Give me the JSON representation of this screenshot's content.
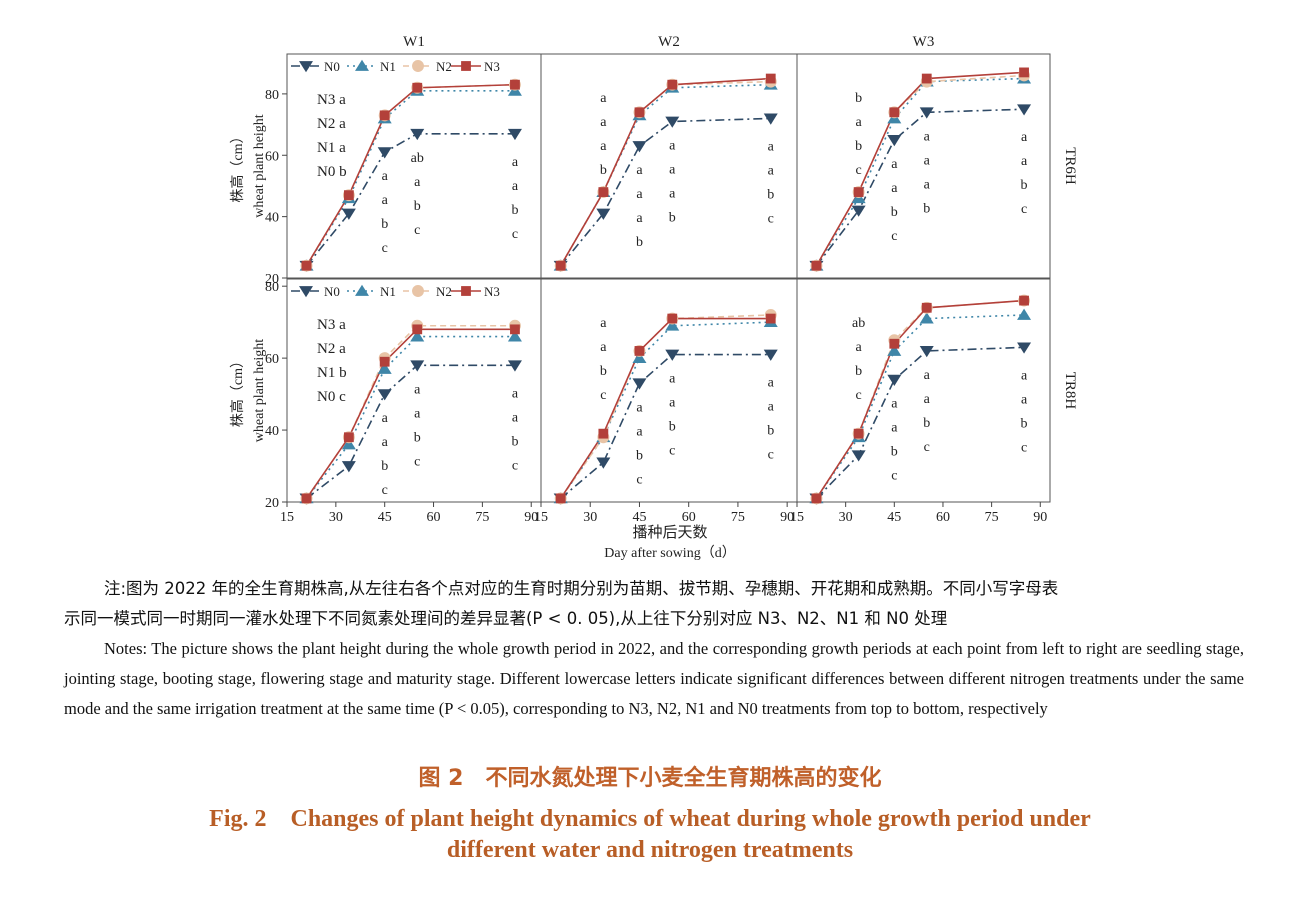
{
  "chart_data": {
    "type": "line",
    "panel_titles": {
      "columns": [
        "W1",
        "W2",
        "W3"
      ],
      "rows": [
        "TR6H",
        "TR8H"
      ]
    },
    "ylabel_cn": "株高（cm）",
    "ylabel_en": "wheat plant height",
    "xlabel_cn": "播种后天数",
    "xlabel_en": "Day after sowing（d）",
    "x_ticks": [
      15,
      30,
      45,
      60,
      75,
      90
    ],
    "xlim": [
      15,
      93
    ],
    "rows": [
      {
        "ylim": [
          20,
          93
        ],
        "y_ticks": [
          20,
          40,
          60,
          80
        ]
      },
      {
        "ylim": [
          20,
          82
        ],
        "y_ticks": [
          20,
          40,
          60,
          80
        ]
      }
    ],
    "legend": [
      "N0",
      "N1",
      "N2",
      "N3"
    ],
    "series_colors": {
      "N0": "#2f4a66",
      "N1": "#3f86a8",
      "N2": "#e8c4a6",
      "N3": "#b3403a"
    },
    "x": [
      21,
      34,
      45,
      55,
      85
    ],
    "panels": [
      {
        "row": 0,
        "col": 0,
        "values": {
          "N0": [
            24,
            41,
            61,
            67,
            67
          ],
          "N1": [
            24,
            46,
            72,
            81,
            81
          ],
          "N2": [
            24,
            47,
            73,
            82,
            83
          ],
          "N3": [
            24,
            47,
            73,
            82,
            83
          ]
        },
        "letter_labels": [
          "N3 a",
          "N2 a",
          "N1 a",
          "N0 b"
        ],
        "letters": [
          {
            "x": 45,
            "lines": [
              "a",
              "a",
              "b",
              "c"
            ]
          },
          {
            "x": 55,
            "lines": [
              "ab",
              "a",
              "b",
              "c"
            ]
          },
          {
            "x": 85,
            "lines": [
              "a",
              "a",
              "b",
              "c"
            ]
          }
        ]
      },
      {
        "row": 0,
        "col": 1,
        "values": {
          "N0": [
            24,
            41,
            63,
            71,
            72
          ],
          "N1": [
            24,
            48,
            73,
            82,
            83
          ],
          "N2": [
            24,
            48,
            74,
            83,
            84
          ],
          "N3": [
            24,
            48,
            74,
            83,
            85
          ]
        },
        "letters": [
          {
            "x": 34,
            "lines": [
              "a",
              "a",
              "a",
              "b"
            ]
          },
          {
            "x": 45,
            "lines": [
              "a",
              "a",
              "a",
              "b"
            ]
          },
          {
            "x": 55,
            "lines": [
              "a",
              "a",
              "a",
              "b"
            ]
          },
          {
            "x": 85,
            "lines": [
              "a",
              "a",
              "b",
              "c"
            ]
          }
        ]
      },
      {
        "row": 0,
        "col": 2,
        "values": {
          "N0": [
            24,
            42,
            65,
            74,
            75
          ],
          "N1": [
            24,
            46,
            72,
            84,
            85
          ],
          "N2": [
            24,
            48,
            74,
            84,
            86
          ],
          "N3": [
            24,
            48,
            74,
            85,
            87
          ]
        },
        "letters": [
          {
            "x": 34,
            "lines": [
              "b",
              "a",
              "b",
              "c"
            ]
          },
          {
            "x": 45,
            "lines": [
              "a",
              "a",
              "b",
              "c"
            ]
          },
          {
            "x": 55,
            "lines": [
              "a",
              "a",
              "a",
              "b"
            ]
          },
          {
            "x": 85,
            "lines": [
              "a",
              "a",
              "b",
              "c"
            ]
          }
        ]
      },
      {
        "row": 1,
        "col": 0,
        "values": {
          "N0": [
            21,
            30,
            50,
            58,
            58
          ],
          "N1": [
            21,
            36,
            57,
            66,
            66
          ],
          "N2": [
            21,
            38,
            60,
            69,
            69
          ],
          "N3": [
            21,
            38,
            59,
            68,
            68
          ]
        },
        "letter_labels": [
          "N3 a",
          "N2 a",
          "N1 b",
          "N0 c"
        ],
        "letters": [
          {
            "x": 45,
            "lines": [
              "a",
              "a",
              "b",
              "c"
            ]
          },
          {
            "x": 55,
            "lines": [
              "a",
              "a",
              "b",
              "c"
            ]
          },
          {
            "x": 85,
            "lines": [
              "a",
              "a",
              "b",
              "c"
            ]
          }
        ]
      },
      {
        "row": 1,
        "col": 1,
        "values": {
          "N0": [
            21,
            31,
            53,
            61,
            61
          ],
          "N1": [
            21,
            38,
            60,
            69,
            70
          ],
          "N2": [
            21,
            38,
            62,
            71,
            72
          ],
          "N3": [
            21,
            39,
            62,
            71,
            71
          ]
        },
        "letters": [
          {
            "x": 34,
            "lines": [
              "a",
              "a",
              "b",
              "c"
            ]
          },
          {
            "x": 45,
            "lines": [
              "a",
              "a",
              "b",
              "c"
            ]
          },
          {
            "x": 55,
            "lines": [
              "a",
              "a",
              "b",
              "c"
            ]
          },
          {
            "x": 85,
            "lines": [
              "a",
              "a",
              "b",
              "c"
            ]
          }
        ]
      },
      {
        "row": 1,
        "col": 2,
        "values": {
          "N0": [
            21,
            33,
            54,
            62,
            63
          ],
          "N1": [
            21,
            38,
            62,
            71,
            72
          ],
          "N2": [
            21,
            39,
            65,
            74,
            76
          ],
          "N3": [
            21,
            39,
            64,
            74,
            76
          ]
        },
        "letters": [
          {
            "x": 34,
            "lines": [
              "ab",
              "a",
              "b",
              "c"
            ]
          },
          {
            "x": 45,
            "lines": [
              "a",
              "a",
              "b",
              "c"
            ]
          },
          {
            "x": 55,
            "lines": [
              "a",
              "a",
              "b",
              "c"
            ]
          },
          {
            "x": 85,
            "lines": [
              "a",
              "a",
              "b",
              "c"
            ]
          }
        ]
      }
    ]
  },
  "notes": {
    "cn_line1": "注:图为 2022 年的全生育期株高,从左往右各个点对应的生育时期分别为苗期、拔节期、孕穗期、开花期和成熟期。不同小写字母表",
    "cn_line2": "示同一模式同一时期同一灌水处理下不同氮素处理间的差异显著(P < 0. 05),从上往下分别对应 N3、N2、N1 和 N0 处理",
    "en": "Notes: The picture shows the plant height during the whole growth period in 2022, and the corresponding growth periods at each point from left to right are seedling stage, jointing stage, booting stage, flowering stage and maturity stage. Different lowercase letters indicate significant differences between different nitrogen treatments under the same mode and the same irrigation treatment at the same time (P < 0.05), corresponding to N3, N2, N1 and N0 treatments from top to bottom, respectively"
  },
  "caption": {
    "cn": "图 2　不同水氮处理下小麦全生育期株高的变化",
    "en_line1": "Fig. 2　Changes of plant height dynamics of wheat during whole growth period under",
    "en_line2": "different water and nitrogen treatments"
  }
}
